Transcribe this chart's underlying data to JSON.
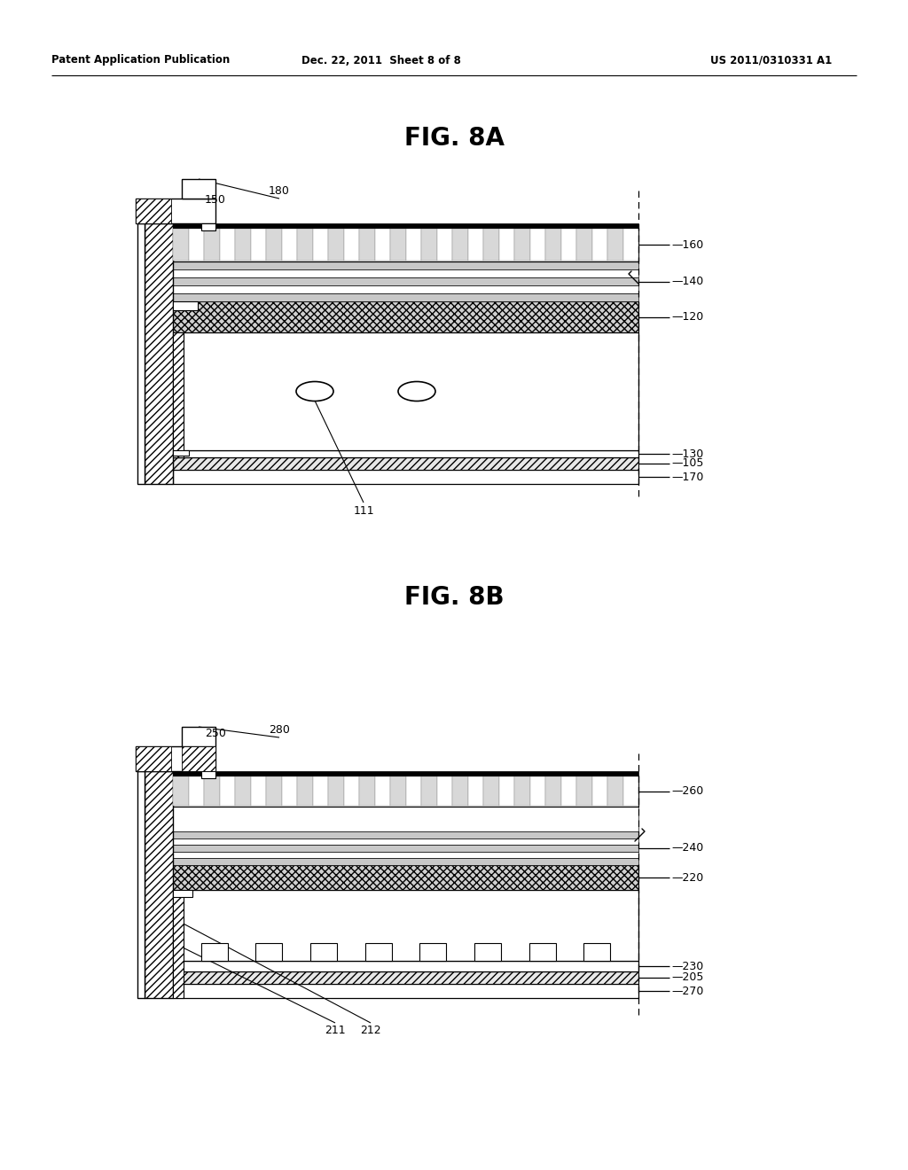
{
  "bg_color": "#ffffff",
  "header_left": "Patent Application Publication",
  "header_center": "Dec. 22, 2011  Sheet 8 of 8",
  "header_right": "US 2011/0310331 A1",
  "fig8a_title": "FIG. 8A",
  "fig8b_title": "FIG. 8B"
}
